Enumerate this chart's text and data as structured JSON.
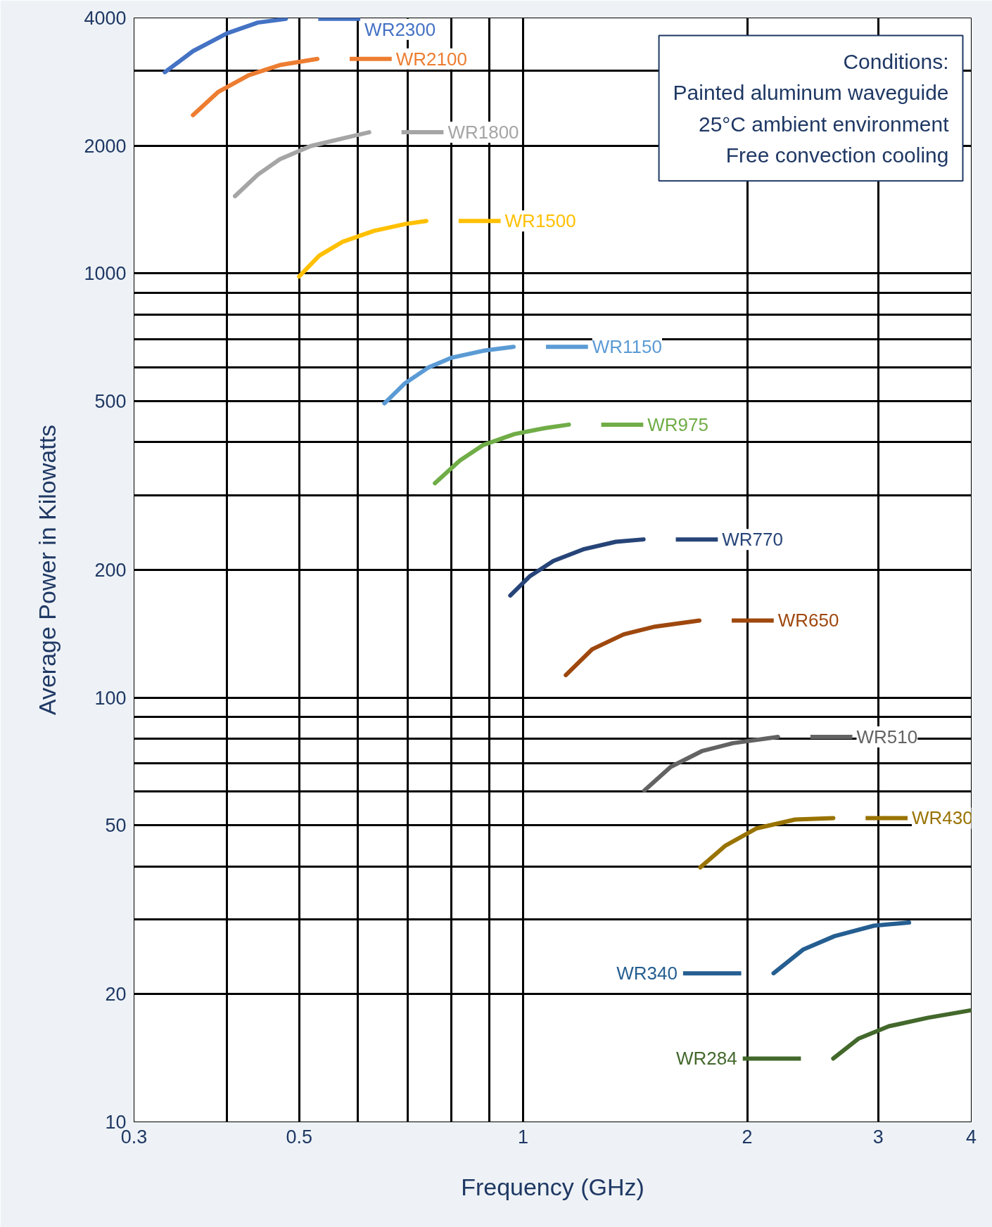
{
  "chart_data": {
    "type": "line",
    "xlabel": "Frequency (GHz)",
    "ylabel": "Average Power in Kilowatts",
    "log": "xy",
    "grid": true,
    "legend": "right",
    "marker": "none",
    "line_style": "solid",
    "xlim": [
      0.3,
      4
    ],
    "ylim": [
      10,
      4000
    ],
    "xticks": [
      0.3,
      {
        "value": 0.4,
        "label": null
      },
      0.5,
      {
        "value": 0.6,
        "label": null
      },
      {
        "value": 0.7,
        "label": null
      },
      {
        "value": 0.8,
        "label": null
      },
      {
        "value": 0.9,
        "label": null
      },
      1,
      2,
      3,
      4
    ],
    "yticks": [
      10,
      20,
      {
        "value": 30,
        "label": null
      },
      {
        "value": 40,
        "label": null
      },
      50,
      {
        "value": 60,
        "label": null
      },
      {
        "value": 70,
        "label": null
      },
      {
        "value": 80,
        "label": null
      },
      {
        "value": 90,
        "label": null
      },
      100,
      200,
      {
        "value": 300,
        "label": null
      },
      {
        "value": 400,
        "label": null
      },
      500,
      {
        "value": 600,
        "label": null
      },
      {
        "value": 700,
        "label": null
      },
      {
        "value": 800,
        "label": null
      },
      {
        "value": 900,
        "label": null
      },
      1000,
      2000,
      {
        "value": 3000,
        "label": null
      },
      4000
    ],
    "annotations": [
      "Conditions:\nPainted aluminum waveguide\n25°C ambient environment\nFree convection cooling"
    ],
    "series": [
      {
        "name": "WR2300",
        "color": "#4472c4",
        "x": [
          0.33,
          0.36,
          0.4,
          0.44,
          0.48
        ],
        "values": [
          2980,
          3340,
          3680,
          3900,
          3980
        ]
      },
      {
        "name": "WR2100",
        "color": "#ed7d31",
        "x": [
          0.36,
          0.389,
          0.428,
          0.471,
          0.529
        ],
        "values": [
          2360,
          2675,
          2933,
          3097,
          3202
        ]
      },
      {
        "name": "WR1800",
        "color": "#a5a5a5",
        "x": [
          0.41,
          0.44,
          0.471,
          0.518,
          0.572,
          0.621
        ],
        "values": [
          1520,
          1709,
          1858,
          1995,
          2080,
          2151
        ]
      },
      {
        "name": "WR1500",
        "color": "#ffc000",
        "x": [
          0.5,
          0.532,
          0.572,
          0.63,
          0.694,
          0.741
        ],
        "values": [
          983,
          1101,
          1187,
          1259,
          1307,
          1329
        ]
      },
      {
        "name": "WR1150",
        "color": "#5b9bd5",
        "x": [
          0.651,
          0.694,
          0.746,
          0.802,
          0.884,
          0.971
        ],
        "values": [
          494,
          551,
          600,
          633,
          657,
          671
        ]
      },
      {
        "name": "WR975",
        "color": "#70ad47",
        "x": [
          0.761,
          0.822,
          0.884,
          0.973,
          1.071,
          1.152
        ],
        "values": [
          320,
          362,
          394,
          418,
          432,
          440
        ]
      },
      {
        "name": "WR770",
        "color": "#264478",
        "x": [
          0.961,
          1.02,
          1.098,
          1.208,
          1.332,
          1.451
        ],
        "values": [
          174,
          193,
          210,
          224,
          233,
          236
        ]
      },
      {
        "name": "WR650",
        "color": "#9e480e",
        "x": [
          1.141,
          1.238,
          1.365,
          1.503,
          1.725
        ],
        "values": [
          113,
          130,
          141,
          147,
          152
        ]
      },
      {
        "name": "WR510",
        "color": "#636363",
        "x": [
          1.455,
          1.579,
          1.738,
          1.914,
          2.2
        ],
        "values": [
          60.4,
          68.7,
          74.8,
          78.1,
          80.8
        ]
      },
      {
        "name": "WR430",
        "color": "#997300",
        "x": [
          1.73,
          1.87,
          2.06,
          2.32,
          2.61
        ],
        "values": [
          39.8,
          44.8,
          49.2,
          51.6,
          52.0
        ]
      },
      {
        "name": "WR340",
        "color": "#255e91",
        "x": [
          2.17,
          2.38,
          2.62,
          2.96,
          3.3
        ],
        "values": [
          22.4,
          25.5,
          27.4,
          29.0,
          29.5
        ]
      },
      {
        "name": "WR284",
        "color": "#43682b",
        "x": [
          2.61,
          2.82,
          3.1,
          3.5,
          3.98
        ],
        "values": [
          14.1,
          15.7,
          16.8,
          17.6,
          18.3
        ]
      }
    ]
  }
}
